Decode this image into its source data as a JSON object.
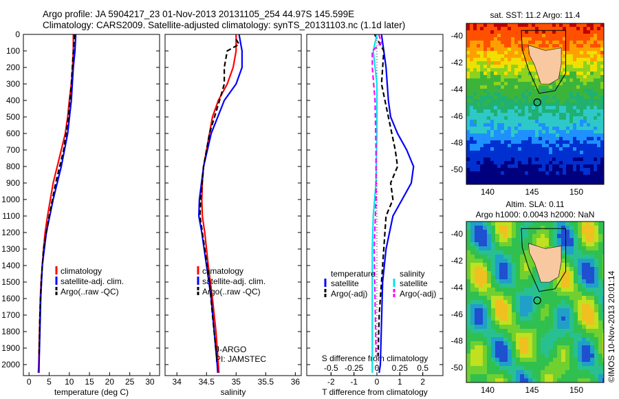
{
  "title": {
    "line1": "Argo profile: JA 5904217_23 01-Nov-2013 20131105_254 44.97S 145.599E",
    "line2": "Climatology: CARS2009. Satellite-adjusted climatology: synTS_20131103.nc (1.1d later)"
  },
  "colors": {
    "climatology": "#ff0000",
    "satellite": "#0000ff",
    "argo": "#000000",
    "sal_satellite": "#00e5ee",
    "sal_argo": "#ff00ff"
  },
  "chart_data": [
    {
      "type": "line",
      "xlabel": "temperature (deg C)",
      "ylabel": "",
      "xlim": [
        -1.4,
        32.4
      ],
      "ylim": [
        2150,
        0
      ],
      "xticks": [
        0,
        5,
        10,
        15,
        20,
        25,
        30
      ],
      "yticks": [
        0,
        100,
        200,
        300,
        400,
        500,
        600,
        700,
        800,
        900,
        1000,
        1100,
        1200,
        1300,
        1400,
        1500,
        1600,
        1700,
        1800,
        1900,
        2000
      ],
      "legend": [
        "climatology",
        "satellite-adj. clim.",
        "Argo(..raw -QC)"
      ],
      "series": [
        {
          "name": "climatology",
          "depth": [
            0,
            100,
            200,
            300,
            400,
            500,
            600,
            700,
            800,
            900,
            1000,
            1100,
            1200,
            1300,
            1400,
            1500,
            1600,
            1800,
            2000,
            2050
          ],
          "values": [
            11,
            11,
            10.8,
            10.5,
            10,
            9.6,
            9,
            8,
            7,
            6,
            5.3,
            4.6,
            4,
            3.6,
            3.3,
            3,
            2.8,
            2.6,
            2.4,
            2.3
          ]
        },
        {
          "name": "satellite-adj. clim.",
          "depth": [
            0,
            100,
            200,
            400,
            600,
            800,
            1000,
            1200,
            1400,
            1600,
            1800,
            2000,
            2050
          ],
          "values": [
            11.6,
            11.4,
            11,
            10.5,
            9.6,
            8,
            6,
            4.3,
            3.3,
            2.9,
            2.7,
            2.5,
            2.45
          ]
        },
        {
          "name": "Argo(..raw -QC)",
          "depth": [
            0,
            100,
            300,
            500,
            700,
            900,
            1100,
            1300,
            1500,
            1700,
            1950
          ],
          "values": [
            11.3,
            11,
            10.5,
            9.8,
            8.6,
            6.6,
            5,
            3.6,
            3,
            2.7,
            2.5
          ]
        }
      ]
    },
    {
      "type": "line",
      "xlabel": "salinity",
      "xlim": [
        33.8,
        36.1
      ],
      "ylim": [
        2150,
        0
      ],
      "xticks": [
        34,
        34.5,
        35,
        35.5,
        36
      ],
      "legend": [
        "climatology",
        "satellite-adj. clim.",
        "Argo(..raw -QC)"
      ],
      "annotations": [
        "J-ARGO",
        "PI: JAMSTEC"
      ],
      "series": [
        {
          "name": "climatology",
          "depth": [
            0,
            100,
            200,
            300,
            400,
            500,
            600,
            700,
            800,
            900,
            1000,
            1100,
            1200,
            1400,
            1600,
            1800,
            2000,
            2050
          ],
          "values": [
            35,
            35,
            34.95,
            34.85,
            34.7,
            34.6,
            34.55,
            34.5,
            34.45,
            34.43,
            34.42,
            34.43,
            34.47,
            34.53,
            34.6,
            34.66,
            34.7,
            34.71
          ]
        },
        {
          "name": "satellite-adj. clim.",
          "depth": [
            0,
            100,
            200,
            300,
            400,
            600,
            800,
            1000,
            1100,
            1200,
            1400,
            1600,
            2000,
            2050
          ],
          "values": [
            35.05,
            35.1,
            35.1,
            35.0,
            34.8,
            34.58,
            34.45,
            34.38,
            34.37,
            34.42,
            34.5,
            34.58,
            34.68,
            34.69
          ]
        },
        {
          "name": "Argo(..raw -QC)",
          "depth": [
            30,
            60,
            100,
            200,
            300,
            400,
            600,
            800,
            1000,
            1100,
            1300,
            1500,
            1700,
            1950
          ],
          "values": [
            35.0,
            35.05,
            34.85,
            34.8,
            34.8,
            34.72,
            34.55,
            34.45,
            34.4,
            34.39,
            34.47,
            34.55,
            34.6,
            34.67
          ]
        }
      ]
    },
    {
      "type": "line",
      "xlabel": "T difference from climatology",
      "x2label": "S difference from climatology",
      "xlim": [
        -3.06,
        2.88
      ],
      "ylim": [
        2150,
        0
      ],
      "xticks": [
        -2,
        -1,
        0,
        1,
        2
      ],
      "x2ticks": [
        -0.5,
        -0.25,
        0,
        0.25,
        0.5
      ],
      "legend_headers": [
        "temperature",
        "salinity"
      ],
      "legend": [
        "satellite",
        "Argo(-adj)",
        "satellite",
        "Argo(-adj)"
      ],
      "series": [
        {
          "name": "T satellite",
          "depth": [
            0,
            200,
            400,
            450,
            500,
            600,
            700,
            800,
            900,
            1000,
            1100,
            1300,
            1500,
            2000,
            2050
          ],
          "values": [
            0.2,
            0.4,
            0.5,
            0.55,
            0.6,
            0.9,
            1.3,
            1.6,
            1.5,
            1.1,
            0.7,
            0.4,
            0.25,
            0.15,
            0.1
          ]
        },
        {
          "name": "T Argo(-adj)",
          "depth": [
            0,
            100,
            300,
            500,
            700,
            800,
            900,
            1000,
            1100,
            1300,
            1500,
            1700,
            1950
          ],
          "values": [
            -0.1,
            0.3,
            0.2,
            0.5,
            0.8,
            0.9,
            0.6,
            0.7,
            0.4,
            0.3,
            0.2,
            0.1,
            0.05
          ]
        },
        {
          "name": "S satellite",
          "depth": [
            0,
            100,
            300,
            600,
            900,
            1100,
            1300,
            1600,
            2000,
            2050
          ],
          "values": [
            0,
            -0.04,
            0,
            0,
            -0.01,
            -0.04,
            -0.05,
            -0.05,
            -0.05,
            -0.05
          ]
        },
        {
          "name": "S Argo(-adj)",
          "depth": [
            0,
            50,
            100,
            200,
            400,
            700,
            1000,
            1300,
            1600,
            1950
          ],
          "values": [
            0.02,
            0.05,
            -0.05,
            -0.05,
            -0.02,
            -0.01,
            -0.01,
            -0.03,
            -0.02,
            -0.01
          ]
        }
      ]
    }
  ],
  "maps": [
    {
      "title": "sat. SST: 11.2 Argo: 11.4",
      "xticks": [
        140,
        145,
        150
      ],
      "yticks": [
        -40,
        -42,
        -44,
        -46,
        -48,
        -50
      ],
      "lonlim": [
        137.6,
        153.1
      ],
      "latlim": [
        -51.1,
        -39.07
      ],
      "type": "sst"
    },
    {
      "title1": "Altim. SLA: 0.11",
      "title2": "Argo h1000: 0.0043 h2000: NaN",
      "xticks": [
        140,
        145,
        150
      ],
      "yticks": [
        -40,
        -42,
        -44,
        -46,
        -48,
        -50
      ],
      "lonlim": [
        137.6,
        153.1
      ],
      "latlim": [
        -51.1,
        -39.07
      ],
      "type": "sla"
    }
  ],
  "argo_position": {
    "lon": 145.599,
    "lat": -44.97
  },
  "credit": "©IMOS 10-Nov-2013 20:01:14"
}
